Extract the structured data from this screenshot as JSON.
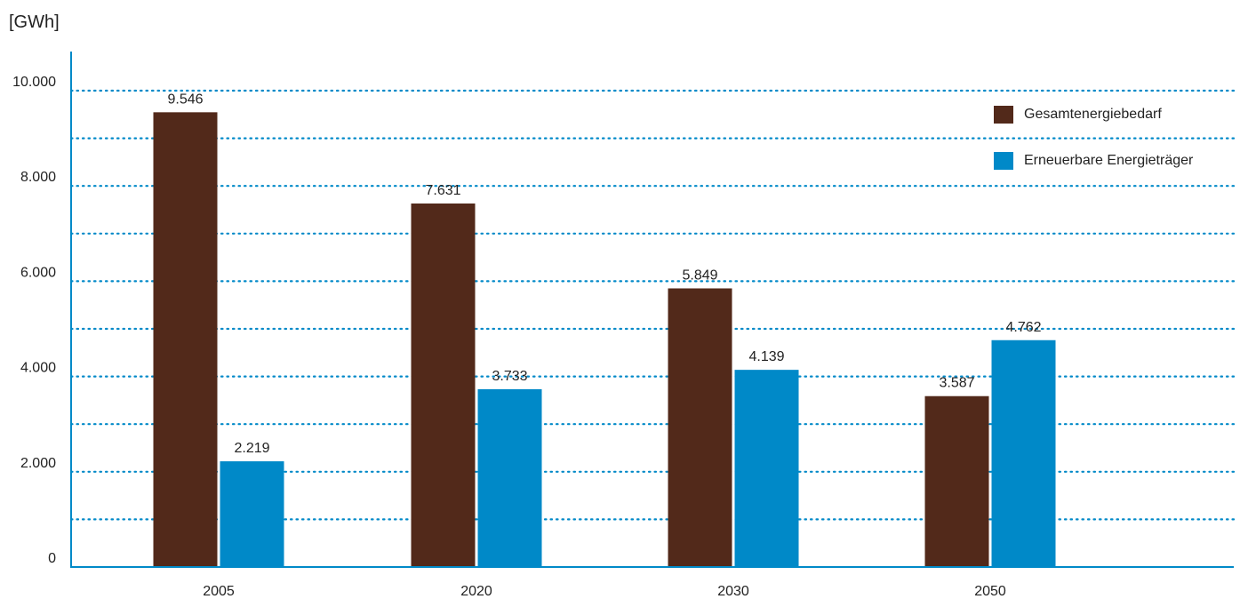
{
  "chart_data": {
    "type": "bar",
    "unit_label": "[GWh]",
    "categories": [
      "2005",
      "2020",
      "2030",
      "2050"
    ],
    "series": [
      {
        "name": "Gesamtenergiebedarf",
        "color": "#52291A",
        "values": [
          9546,
          7631,
          5849,
          3587
        ],
        "labels": [
          "9.546",
          "7.631",
          "5.849",
          "3.587"
        ]
      },
      {
        "name": "Erneuerbare Energieträger",
        "color": "#0089C8",
        "values": [
          2219,
          3733,
          4139,
          4762
        ],
        "labels": [
          "2.219",
          "3.733",
          "4.139",
          "4.762"
        ]
      }
    ],
    "y_ticks": [
      0,
      2000,
      4000,
      6000,
      8000,
      10000
    ],
    "y_tick_labels": [
      "0",
      "2.000",
      "4.000",
      "6.000",
      "8.000",
      "10.000"
    ],
    "ylim": [
      0,
      10000
    ],
    "grid": true,
    "legend_position": "top-right",
    "axis_color": "#0089C8"
  }
}
